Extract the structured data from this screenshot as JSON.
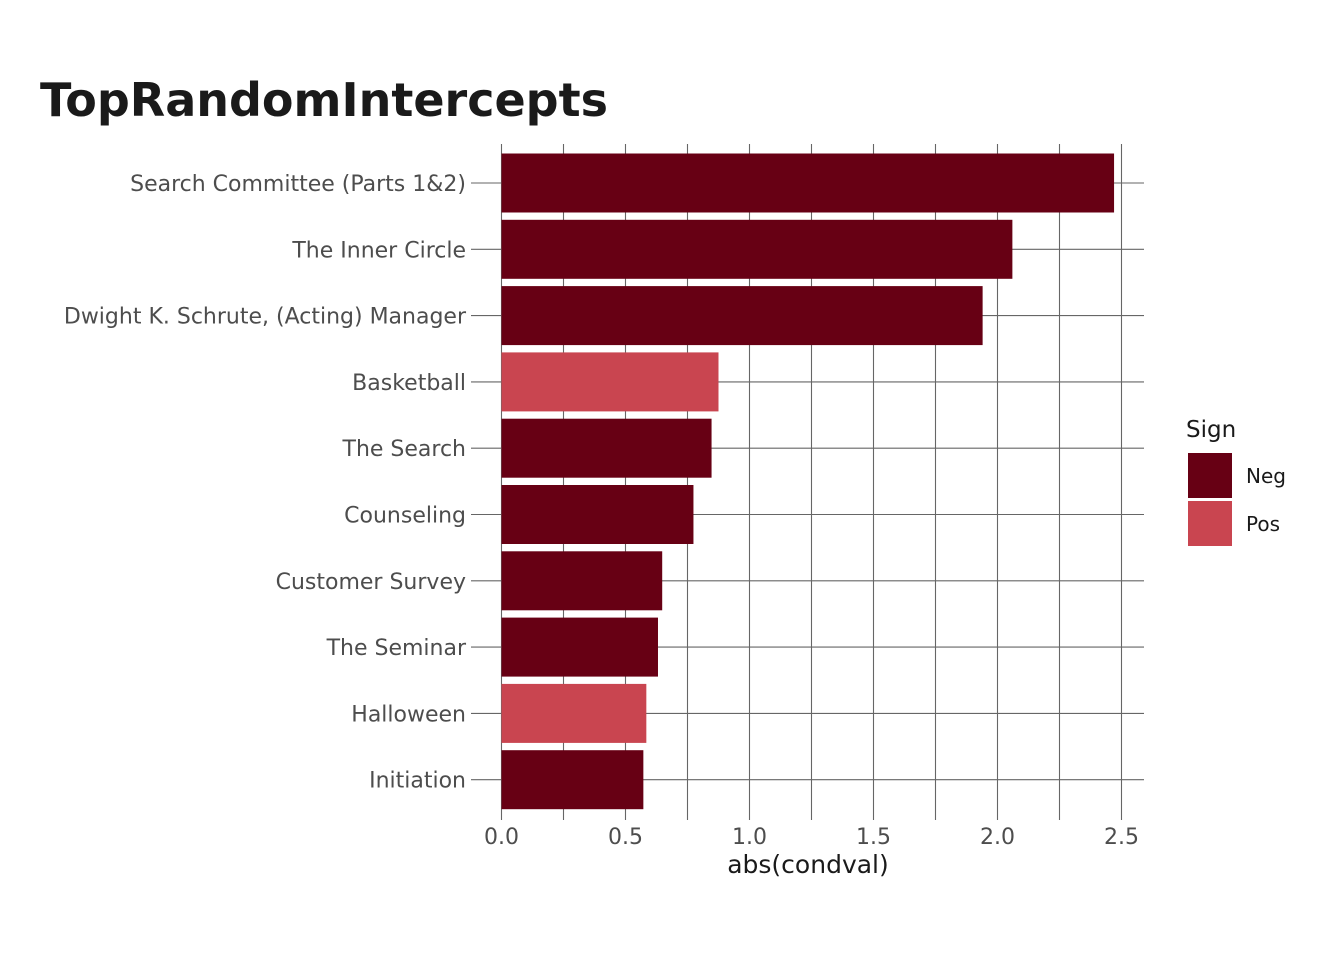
{
  "chart_data": {
    "type": "bar",
    "orientation": "horizontal",
    "title": "TopRandomIntercepts",
    "xlabel": "abs(condval)",
    "ylabel": "",
    "xlim": [
      0,
      2.6
    ],
    "xticks": [
      "0.0",
      "0.5",
      "1.0",
      "1.5",
      "2.0",
      "2.5"
    ],
    "categories": [
      "Search Committee (Parts 1&2)",
      "The Inner Circle",
      "Dwight K. Schrute, (Acting) Manager",
      "Basketball",
      "The Search",
      "Counseling",
      "Customer Survey",
      "The Seminar",
      "Halloween",
      "Initiation"
    ],
    "values": [
      2.47,
      2.06,
      1.94,
      0.875,
      0.847,
      0.774,
      0.648,
      0.631,
      0.584,
      0.572
    ],
    "sign": [
      "Neg",
      "Neg",
      "Neg",
      "Pos",
      "Neg",
      "Neg",
      "Neg",
      "Neg",
      "Pos",
      "Neg"
    ],
    "grid": true,
    "legend": {
      "title": "Sign",
      "position": "right",
      "entries": [
        {
          "name": "Neg",
          "color": "#670014"
        },
        {
          "name": "Pos",
          "color": "#c94550"
        }
      ]
    }
  }
}
